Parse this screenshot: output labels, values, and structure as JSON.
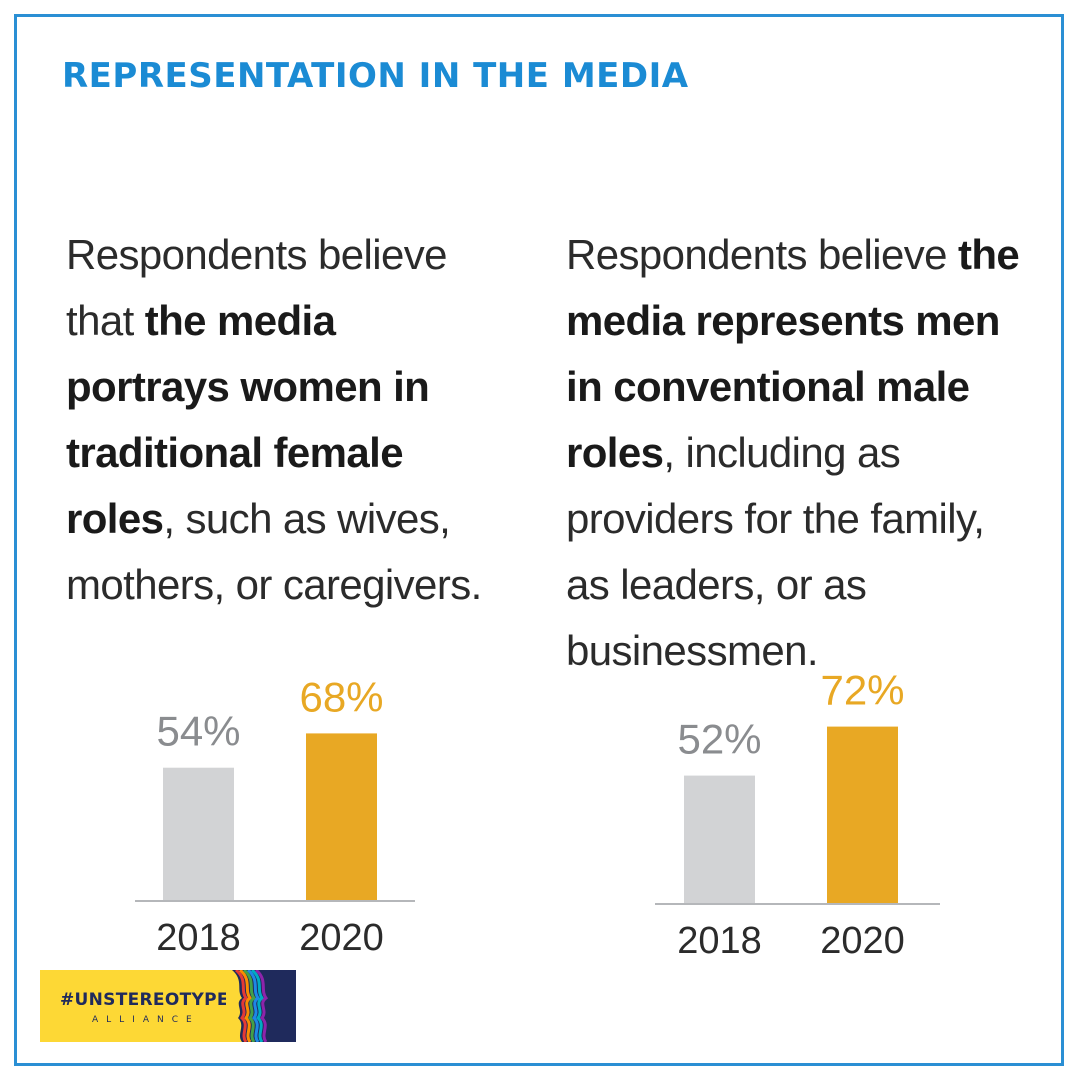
{
  "title": "REPRESENTATION IN THE MEDIA",
  "colors": {
    "border": "#2a8fd4",
    "title": "#1b8bd4",
    "bar_2018": "#d2d3d5",
    "bar_2020": "#e8a824",
    "label_2018": "#8a8c8f",
    "label_2020": "#e8a824",
    "baseline": "#b5b7ba"
  },
  "left_panel": {
    "text_1": "Respondents believe that ",
    "text_bold": "the media portrays women in traditional female roles",
    "text_2": ", such as wives, mothers, or caregivers."
  },
  "right_panel": {
    "text_1": "Respondents believe ",
    "text_bold": "the media represents men in conventional male roles",
    "text_2": ", including as providers for the family, as leaders, or as businessmen."
  },
  "chart_data": [
    {
      "type": "bar",
      "categories": [
        "2018",
        "2020"
      ],
      "values": [
        54,
        68
      ],
      "data_labels": [
        "54%",
        "68%"
      ],
      "title": "",
      "xlabel": "",
      "ylabel": ""
    },
    {
      "type": "bar",
      "categories": [
        "2018",
        "2020"
      ],
      "values": [
        52,
        72
      ],
      "data_labels": [
        "52%",
        "72%"
      ],
      "title": "",
      "xlabel": "",
      "ylabel": ""
    }
  ],
  "logo": {
    "main_text": "#UNSTEREOTYPE",
    "sub_text": "ALLIANCE"
  }
}
